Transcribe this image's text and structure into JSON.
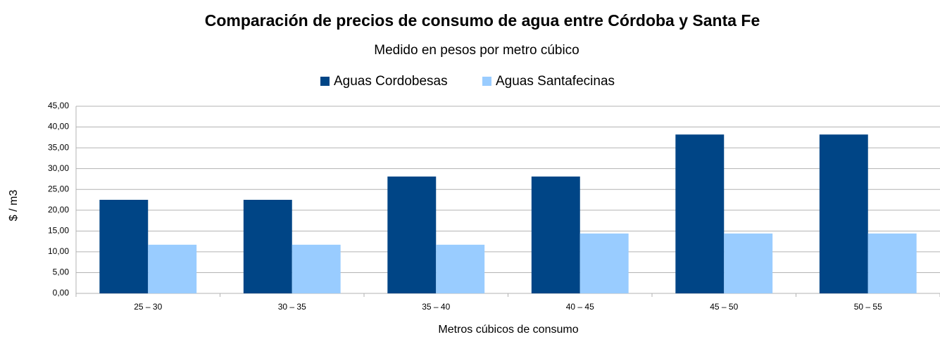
{
  "chart_data": {
    "type": "bar",
    "title": "Comparación de precios de consumo de agua entre Córdoba y Santa Fe",
    "subtitle": "Medido en pesos por metro cúbico",
    "x_label": "Metros cúbicos de consumo",
    "y_label": "$ / m3",
    "categories": [
      "25 – 30",
      "30 – 35",
      "35 – 40",
      "40 – 45",
      "45 – 50",
      "50 – 55"
    ],
    "series": [
      {
        "name": "Aguas Cordobesas",
        "color": "#004586",
        "values": [
          22.5,
          22.5,
          28.1,
          28.1,
          38.2,
          38.2
        ]
      },
      {
        "name": "Aguas Santafecinas",
        "color": "#99ccff",
        "values": [
          11.7,
          11.7,
          11.7,
          14.4,
          14.4,
          14.4
        ]
      }
    ],
    "ylim": [
      0,
      45
    ],
    "yticks": [
      {
        "value": 0,
        "label": "0,00"
      },
      {
        "value": 5,
        "label": "5,00"
      },
      {
        "value": 10,
        "label": "10,00"
      },
      {
        "value": 15,
        "label": "15,00"
      },
      {
        "value": 20,
        "label": "20,00"
      },
      {
        "value": 25,
        "label": "25,00"
      },
      {
        "value": 30,
        "label": "30,00"
      },
      {
        "value": 35,
        "label": "35,00"
      },
      {
        "value": 40,
        "label": "40,00"
      },
      {
        "value": 45,
        "label": "45,00"
      }
    ],
    "grid": true,
    "legend": "top"
  }
}
